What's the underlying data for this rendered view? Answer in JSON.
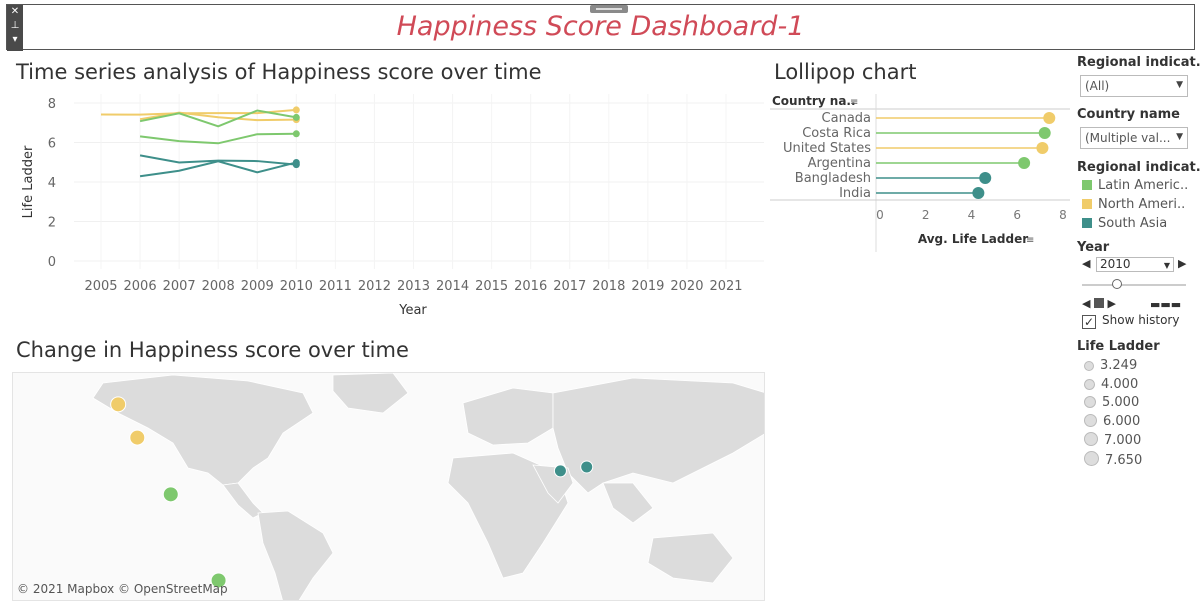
{
  "dashboard": {
    "title": "Happiness Score Dashboard-1"
  },
  "colors": {
    "latin_america": "#7ec86e",
    "north_america": "#f0cc6a",
    "south_asia": "#3e8f8a",
    "title": "#d04a57"
  },
  "time_series": {
    "title": "Time series analysis of Happiness score over time",
    "ylabel": "Life Ladder",
    "xlabel": "Year"
  },
  "lollipop": {
    "title": "Lollipop chart",
    "row_header": "Country na..",
    "xlabel": "Avg. Life Ladder"
  },
  "map": {
    "title": "Change in Happiness score over time",
    "credit": "© 2021 Mapbox © OpenStreetMap"
  },
  "filters": {
    "region_filter_label": "Regional indicat..",
    "region_filter_value": "(All)",
    "country_filter_label": "Country name",
    "country_filter_value": "(Multiple val...",
    "region_legend_label": "Regional indicat..",
    "region_legend": [
      "Latin Americ..",
      "North Ameri..",
      "South Asia"
    ],
    "year_label": "Year",
    "year_value": "2010",
    "show_history": "Show history",
    "size_legend_label": "Life Ladder",
    "size_legend": [
      "3.249",
      "4.000",
      "5.000",
      "6.000",
      "7.000",
      "7.650"
    ]
  },
  "chart_data": [
    {
      "type": "line",
      "title": "Time series analysis of Happiness score over time",
      "xlabel": "Year",
      "ylabel": "Life Ladder",
      "x": [
        2005,
        2006,
        2007,
        2008,
        2009,
        2010,
        2011,
        2012,
        2013,
        2014,
        2015,
        2016,
        2017,
        2018,
        2019,
        2020,
        2021
      ],
      "ylim": [
        0,
        8
      ],
      "yticks": [
        0,
        2,
        4,
        6,
        8
      ],
      "series": [
        {
          "region": "North America",
          "points": [
            [
              2005,
              7.42
            ],
            [
              2006,
              7.41
            ],
            [
              2007,
              7.48
            ],
            [
              2008,
              7.49
            ],
            [
              2009,
              7.49
            ],
            [
              2010,
              7.65
            ]
          ]
        },
        {
          "region": "North America",
          "points": [
            [
              2006,
              7.18
            ],
            [
              2007,
              7.51
            ],
            [
              2008,
              7.28
            ],
            [
              2009,
              7.13
            ],
            [
              2010,
              7.16
            ]
          ]
        },
        {
          "region": "Latin America",
          "points": [
            [
              2006,
              7.08
            ],
            [
              2007,
              7.48
            ],
            [
              2008,
              6.82
            ],
            [
              2009,
              7.62
            ],
            [
              2010,
              7.27
            ]
          ]
        },
        {
          "region": "Latin America",
          "points": [
            [
              2006,
              6.31
            ],
            [
              2007,
              6.07
            ],
            [
              2008,
              5.96
            ],
            [
              2009,
              6.42
            ],
            [
              2010,
              6.44
            ]
          ]
        },
        {
          "region": "South Asia",
          "points": [
            [
              2006,
              5.35
            ],
            [
              2007,
              4.99
            ],
            [
              2008,
              5.08
            ],
            [
              2009,
              5.06
            ],
            [
              2010,
              4.88
            ]
          ]
        },
        {
          "region": "South Asia",
          "points": [
            [
              2006,
              4.29
            ],
            [
              2007,
              4.57
            ],
            [
              2008,
              5.05
            ],
            [
              2009,
              4.49
            ],
            [
              2010,
              4.99
            ]
          ]
        }
      ]
    },
    {
      "type": "bar",
      "title": "Lollipop chart",
      "xlabel": "Avg. Life Ladder",
      "xlim": [
        0,
        8
      ],
      "xticks": [
        0,
        2,
        4,
        6,
        8
      ],
      "categories": [
        "Canada",
        "Costa Rica",
        "United States",
        "Argentina",
        "Bangladesh",
        "India"
      ],
      "regions": [
        "North America",
        "Latin America",
        "North America",
        "Latin America",
        "South Asia",
        "South Asia"
      ],
      "values": [
        7.4,
        7.2,
        7.1,
        6.3,
        4.6,
        4.3
      ]
    }
  ],
  "map_points": [
    {
      "region": "North America",
      "lon": -106,
      "lat": 56
    },
    {
      "region": "North America",
      "lon": -98,
      "lat": 39
    },
    {
      "region": "Latin America",
      "lon": -84,
      "lat": 10
    },
    {
      "region": "Latin America",
      "lon": -64,
      "lat": -34
    },
    {
      "region": "South Asia",
      "lon": 79,
      "lat": 22
    },
    {
      "region": "South Asia",
      "lon": 90,
      "lat": 24
    }
  ]
}
